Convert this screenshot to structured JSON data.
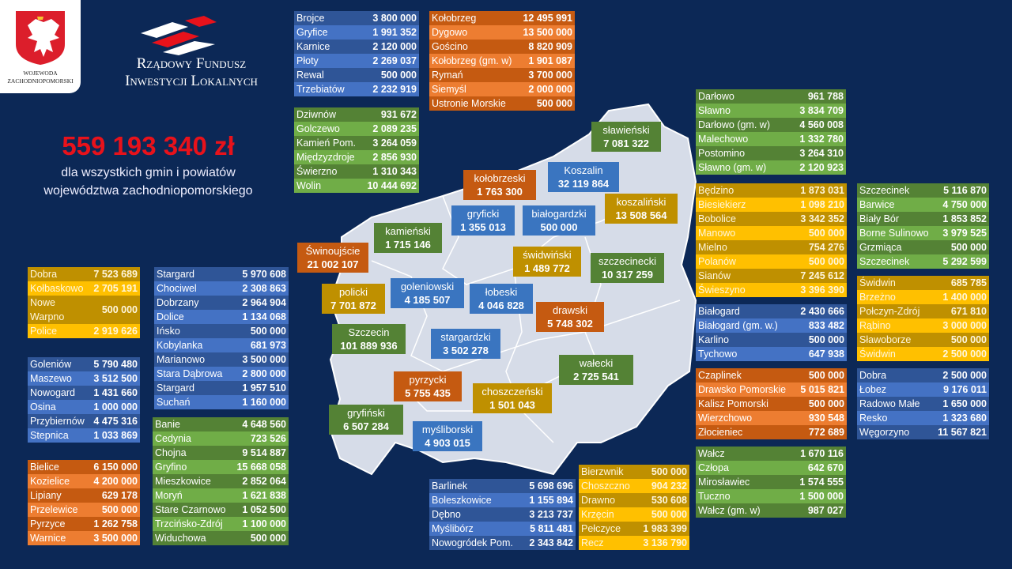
{
  "header": {
    "emblem_text": "WOJEWODA ZACHODNIOPOMORSKI",
    "fund_line1": "Rządowy Fundusz",
    "fund_line2": "Inwestycji Lokalnych"
  },
  "summary": {
    "total": "559 193 340 zł",
    "description": "dla wszystkich gmin i powiatów województwa zachodniopomorskiego"
  },
  "colors": {
    "background": "#0c2856",
    "total": "#e8121b",
    "blue": "#2f5597",
    "orange": "#c55a11",
    "green": "#548235",
    "gold": "#bf9000",
    "map": "#d6dce8"
  },
  "map_labels": [
    {
      "name": "sławieński",
      "value": "7 081 322",
      "color": "green"
    },
    {
      "name": "Koszalin",
      "value": "32 119 864",
      "color": "blue"
    },
    {
      "name": "kołobrzeski",
      "value": "1 763 300",
      "color": "orange"
    },
    {
      "name": "koszaliński",
      "value": "13 508 564",
      "color": "gold"
    },
    {
      "name": "gryficki",
      "value": "1 355 013",
      "color": "blue"
    },
    {
      "name": "białogardzki",
      "value": "500 000",
      "color": "blue"
    },
    {
      "name": "kamieński",
      "value": "1 715 146",
      "color": "green"
    },
    {
      "name": "Świnoujście",
      "value": "21 002 107",
      "color": "orange"
    },
    {
      "name": "świdwiński",
      "value": "1 489 772",
      "color": "gold"
    },
    {
      "name": "szczecinecki",
      "value": "10 317 259",
      "color": "green"
    },
    {
      "name": "policki",
      "value": "7 701 872",
      "color": "gold"
    },
    {
      "name": "goleniowski",
      "value": "4 185 507",
      "color": "blue"
    },
    {
      "name": "łobeski",
      "value": "4 046 828",
      "color": "blue"
    },
    {
      "name": "drawski",
      "value": "5 748 302",
      "color": "orange"
    },
    {
      "name": "Szczecin",
      "value": "101 889 936",
      "color": "green"
    },
    {
      "name": "stargardzki",
      "value": "3 502 278",
      "color": "blue"
    },
    {
      "name": "wałecki",
      "value": "2 725 541",
      "color": "green"
    },
    {
      "name": "pyrzycki",
      "value": "5 755 435",
      "color": "orange"
    },
    {
      "name": "choszczeński",
      "value": "1 501 043",
      "color": "gold"
    },
    {
      "name": "gryfiński",
      "value": "6 507 284",
      "color": "green"
    },
    {
      "name": "myśliborski",
      "value": "4 903 015",
      "color": "blue"
    }
  ],
  "tables": {
    "gryficki": {
      "color": "blue",
      "rows": [
        [
          "Brojce",
          "3 800 000"
        ],
        [
          "Gryfice",
          "1 991 352"
        ],
        [
          "Karnice",
          "2 120 000"
        ],
        [
          "Płoty",
          "2 269 037"
        ],
        [
          "Rewal",
          "500 000"
        ],
        [
          "Trzebiatów",
          "2 232 919"
        ]
      ]
    },
    "kolobrzeski": {
      "color": "orange",
      "rows": [
        [
          "Kołobrzeg",
          "12 495 991"
        ],
        [
          "Dygowo",
          "13 500 000"
        ],
        [
          "Gościno",
          "8 820 909"
        ],
        [
          "Kołobrzeg (gm. w)",
          "1 901 087"
        ],
        [
          "Rymań",
          "3 700 000"
        ],
        [
          "Siemyśl",
          "2 000 000"
        ],
        [
          "Ustronie Morskie",
          "500 000"
        ]
      ]
    },
    "kamienski": {
      "color": "green",
      "rows": [
        [
          "Dziwnów",
          "931 672"
        ],
        [
          "Golczewo",
          "2 089 235"
        ],
        [
          "Kamień Pom.",
          "3 264 059"
        ],
        [
          "Międzyzdroje",
          "2 856 930"
        ],
        [
          "Świerzno",
          "1 310 343"
        ],
        [
          "Wolin",
          "10 444 692"
        ]
      ]
    },
    "slawienski": {
      "color": "green",
      "rows": [
        [
          "Darłowo",
          "961 788"
        ],
        [
          "Sławno",
          "3 834 709"
        ],
        [
          "Darłowo (gm. w)",
          "4 560 008"
        ],
        [
          "Malechowo",
          "1 332 780"
        ],
        [
          "Postomino",
          "3 264 310"
        ],
        [
          "Sławno (gm. w)",
          "2 120 923"
        ]
      ]
    },
    "koszalinski": {
      "color": "gold",
      "rows": [
        [
          "Będzino",
          "1 873 031"
        ],
        [
          "Biesiekierz",
          "1 098 210"
        ],
        [
          "Bobolice",
          "3 342 352"
        ],
        [
          "Manowo",
          "500 000"
        ],
        [
          "Mielno",
          "754 276"
        ],
        [
          "Polanów",
          "500 000"
        ],
        [
          "Sianów",
          "7 245 612"
        ],
        [
          "Świeszyno",
          "3 396 390"
        ]
      ]
    },
    "szczecinecki": {
      "color": "green",
      "rows": [
        [
          "Szczecinek",
          "5 116 870"
        ],
        [
          "Barwice",
          "4 750 000"
        ],
        [
          "Biały Bór",
          "1 853 852"
        ],
        [
          "Borne Sulinowo",
          "3 979 525"
        ],
        [
          "Grzmiąca",
          "500 000"
        ],
        [
          "Szczecinek",
          "5 292 599"
        ]
      ]
    },
    "swidwinski": {
      "color": "gold",
      "rows": [
        [
          "Świdwin",
          "685 785"
        ],
        [
          "Brzeżno",
          "1 400 000"
        ],
        [
          "Połczyn-Zdrój",
          "671 810"
        ],
        [
          "Rąbino",
          "3 000 000"
        ],
        [
          "Sławoborze",
          "500 000"
        ],
        [
          "Świdwin",
          "2 500 000"
        ]
      ]
    },
    "bialogardzki": {
      "color": "blue",
      "rows": [
        [
          "Białogard",
          "2 430 666"
        ],
        [
          "Białogard (gm. w.)",
          "833 482"
        ],
        [
          "Karlino",
          "500 000"
        ],
        [
          "Tychowo",
          "647 938"
        ]
      ]
    },
    "drawski": {
      "color": "orange",
      "rows": [
        [
          "Czaplinek",
          "500 000"
        ],
        [
          "Drawsko Pomorskie",
          "5 015 821"
        ],
        [
          "Kalisz Pomorski",
          "500 000"
        ],
        [
          "Wierzchowo",
          "930 548"
        ],
        [
          "Złocieniec",
          "772 689"
        ]
      ]
    },
    "lobeski": {
      "color": "blue",
      "rows": [
        [
          "Dobra",
          "2 500 000"
        ],
        [
          "Łobez",
          "9 176 011"
        ],
        [
          "Radowo Małe",
          "1 650 000"
        ],
        [
          "Resko",
          "1 323 680"
        ],
        [
          "Węgorzyno",
          "11 567 821"
        ]
      ]
    },
    "walecki": {
      "color": "green",
      "rows": [
        [
          "Wałcz",
          "1 670 116"
        ],
        [
          "Człopa",
          "642 670"
        ],
        [
          "Mirosławiec",
          "1 574 555"
        ],
        [
          "Tuczno",
          "1 500 000"
        ],
        [
          "Wałcz (gm. w)",
          "987 027"
        ]
      ]
    },
    "policki": {
      "color": "gold",
      "rows": [
        [
          "Dobra",
          "7 523 689"
        ],
        [
          "Kołbaskowo",
          "2 705 191"
        ],
        [
          "Nowe Warpno",
          "500 000"
        ],
        [
          "Police",
          "2 919 626"
        ]
      ]
    },
    "stargardzki": {
      "color": "blue",
      "rows": [
        [
          "Stargard",
          "5 970 608"
        ],
        [
          "Chociwel",
          "2 308 863"
        ],
        [
          "Dobrzany",
          "2 964 904"
        ],
        [
          "Dolice",
          "1 134 068"
        ],
        [
          "Ińsko",
          "500 000"
        ],
        [
          "Kobylanka",
          "681 973"
        ],
        [
          "Marianowo",
          "3 500 000"
        ],
        [
          "Stara Dąbrowa",
          "2 800 000"
        ],
        [
          "Stargard",
          "1 957 510"
        ],
        [
          "Suchań",
          "1 160 000"
        ]
      ]
    },
    "goleniowski": {
      "color": "blue",
      "rows": [
        [
          "Goleniów",
          "5 790 480"
        ],
        [
          "Maszewo",
          "3 512 500"
        ],
        [
          "Nowogard",
          "1 431 660"
        ],
        [
          "Osina",
          "1 000 000"
        ],
        [
          "Przybiernów",
          "4 475 316"
        ],
        [
          "Stepnica",
          "1 033 869"
        ]
      ]
    },
    "gryfinski": {
      "color": "green",
      "rows": [
        [
          "Banie",
          "4 648 560"
        ],
        [
          "Cedynia",
          "723 526"
        ],
        [
          "Chojna",
          "9 514 887"
        ],
        [
          "Gryfino",
          "15 668 058"
        ],
        [
          "Mieszkowice",
          "2 852 064"
        ],
        [
          "Moryń",
          "1 621 838"
        ],
        [
          "Stare Czarnowo",
          "1 052 500"
        ],
        [
          "Trzcińsko-Zdrój",
          "1 100 000"
        ],
        [
          "Widuchowa",
          "500 000"
        ]
      ]
    },
    "pyrzycki": {
      "color": "orange",
      "rows": [
        [
          "Bielice",
          "6 150 000"
        ],
        [
          "Kozielice",
          "4 200 000"
        ],
        [
          "Lipiany",
          "629 178"
        ],
        [
          "Przelewice",
          "500 000"
        ],
        [
          "Pyrzyce",
          "1 262 758"
        ],
        [
          "Warnice",
          "3 500 000"
        ]
      ]
    },
    "mysliborski": {
      "color": "blue",
      "rows": [
        [
          "Barlinek",
          "5 698 696"
        ],
        [
          "Boleszkowice",
          "1 155 894"
        ],
        [
          "Dębno",
          "3 213 737"
        ],
        [
          "Myślibórz",
          "5 811 481"
        ],
        [
          "Nowogródek Pom.",
          "2 343 842"
        ]
      ]
    },
    "choszczenski": {
      "color": "gold",
      "rows": [
        [
          "Bierzwnik",
          "500 000"
        ],
        [
          "Choszczno",
          "904 232"
        ],
        [
          "Drawno",
          "530 608"
        ],
        [
          "Krzęcin",
          "500 000"
        ],
        [
          "Pełczyce",
          "1 983 399"
        ],
        [
          "Recz",
          "3 136 790"
        ]
      ]
    }
  }
}
